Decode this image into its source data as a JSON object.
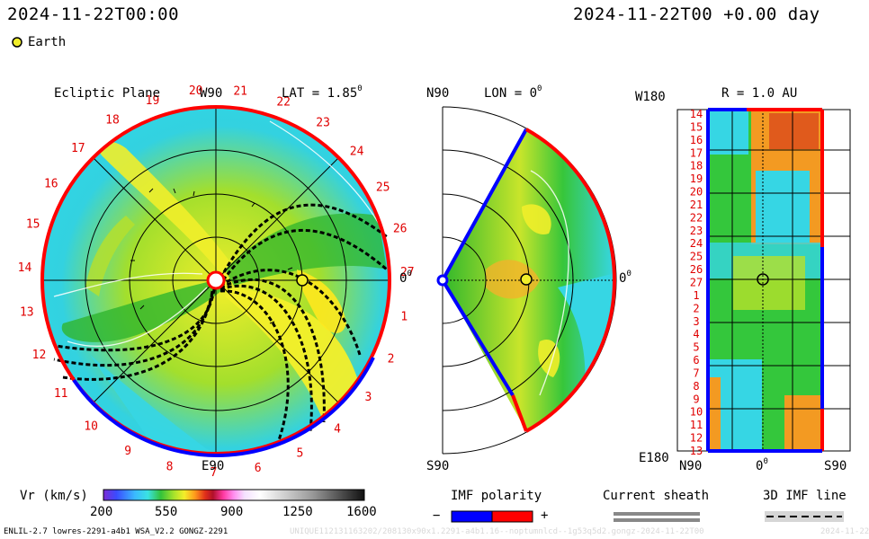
{
  "header": {
    "left_time": "2024-11-22T00:00",
    "right_time": "2024-11-22T00 +0.00 day"
  },
  "legend": {
    "earth_label": "Earth"
  },
  "ecliptic": {
    "title": "Ecliptic Plane",
    "top_label": "W90",
    "bottom_label": "E90",
    "lat_label": "LAT = 1.85",
    "right_label": "0",
    "degree_mark": "0",
    "rotation_labels": [
      "20",
      "21",
      "22",
      "23",
      "24",
      "25",
      "26",
      "27",
      "1",
      "2",
      "3",
      "4",
      "5",
      "6",
      "7",
      "8",
      "9",
      "10",
      "11",
      "12",
      "13",
      "14",
      "15",
      "16",
      "17",
      "18",
      "19"
    ]
  },
  "meridional": {
    "top_label": "N90",
    "bottom_label": "S90",
    "lon_label": "LON = 0",
    "right_label": "0",
    "degree_mark": "0"
  },
  "synoptic": {
    "left_top_label": "W180",
    "left_bottom_label": "E180",
    "r_label": "R = 1.0 AU",
    "bottom_left": "N90",
    "bottom_mid": "0",
    "bottom_right": "S90",
    "degree_mark": "0",
    "row_labels": [
      "14",
      "15",
      "16",
      "17",
      "18",
      "19",
      "20",
      "21",
      "22",
      "23",
      "24",
      "25",
      "26",
      "27",
      "1",
      "2",
      "3",
      "4",
      "5",
      "6",
      "7",
      "8",
      "9",
      "10",
      "11",
      "12",
      "13"
    ]
  },
  "colorbar": {
    "label": "Vr (km/s)",
    "ticks": [
      "200",
      "550",
      "900",
      "1250",
      "1600"
    ]
  },
  "imf_polarity": {
    "title": "IMF polarity",
    "minus": "−",
    "plus": "+"
  },
  "current_sheath": {
    "title": "Current sheath"
  },
  "imf_line": {
    "title": "3D IMF line"
  },
  "footer": {
    "model": "ENLIL-2.7 lowres-2291-a4b1 WSA_V2.2 GONGZ-2291",
    "run_id": "UNIQUE112131163202/208130x90x1.2291-a4b1.16--noptumnlcd--1g53q5d2.gongz-2024-11-22T00",
    "run_date": "2024-11-22"
  },
  "chart_data": {
    "type": "heatmap",
    "quantity": "Vr (km/s)",
    "color_range": [
      200,
      1600
    ],
    "colorbar_ticks": [
      200,
      550,
      900,
      1250,
      1600
    ],
    "panels": [
      "Ecliptic Plane",
      "LON = 0",
      "R = 1.0 AU"
    ],
    "earth": {
      "lat_deg": 1.85,
      "lon_deg": 0,
      "r_au": 1.0
    },
    "colors": {
      "slow": "#39d6e6",
      "medium": "#29b52c",
      "fast": "#f2ef2a",
      "faster": "#ff9a1e",
      "fastest": "#e0451c",
      "polarity_negative": "#0000ff",
      "polarity_positive": "#ff0000"
    }
  }
}
